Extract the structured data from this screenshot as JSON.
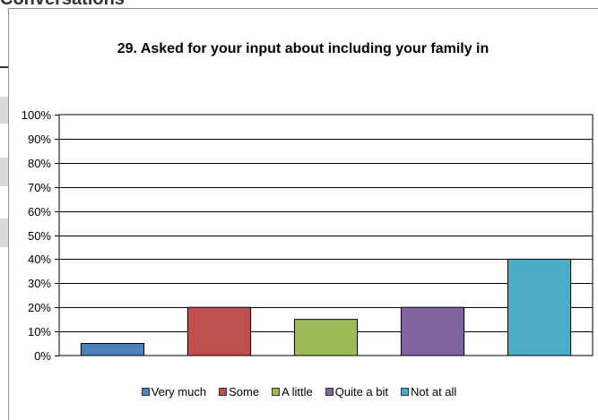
{
  "background": {
    "partial_heading": "Conversations"
  },
  "chart_data": {
    "type": "bar",
    "title": "29. Asked for your input about including your family in",
    "categories": [
      "Very much",
      "Some",
      "A little",
      "Quite a bit",
      "Not at all"
    ],
    "values": [
      5,
      20,
      15,
      20,
      40
    ],
    "colors": [
      "#4f81bd",
      "#c0504d",
      "#9bbb59",
      "#8064a2",
      "#4bacc6"
    ],
    "ylim": [
      0,
      100
    ],
    "y_ticks": [
      "0%",
      "10%",
      "20%",
      "30%",
      "40%",
      "50%",
      "60%",
      "70%",
      "80%",
      "90%",
      "100%"
    ],
    "xlabel": "",
    "ylabel": "",
    "grid": true,
    "legend_position": "bottom"
  }
}
